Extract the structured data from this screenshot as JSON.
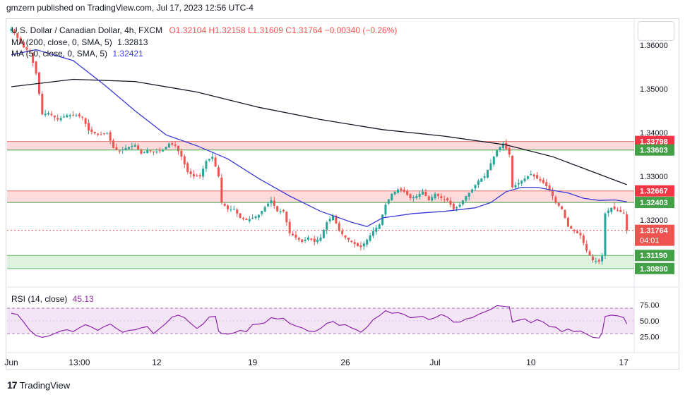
{
  "header": {
    "published": "gmzern published on TradingView.com, Jul 17, 2023 12:56 UTC-4"
  },
  "legend": {
    "symbol": "U.S. Dollar / Canadian Dollar, 4h, FXCM",
    "ohlc": "O1.32104  H1.32158  L1.31609  C1.31764  −0.00340 (−0.26%)",
    "ma200_label": "MA (200, close, 0, SMA, 5)",
    "ma200_value": "1.32813",
    "ma50_label": "MA (50, close, 0, SMA, 5)",
    "ma50_value": "1.32421",
    "rsi_label": "RSI (14, close)",
    "rsi_value": "45.13"
  },
  "footer": {
    "brand": "TradingView",
    "logo": "17"
  },
  "chart_data": {
    "type": "candlestick",
    "timeframe": "4h",
    "ylim": [
      1.305,
      1.366
    ],
    "y_ticks": [
      "1.36000",
      "1.35000",
      "1.34000",
      "1.33000",
      "1.32000"
    ],
    "x_ticks": [
      "Jun",
      "13:00",
      "12",
      "19",
      "26",
      "Jul",
      "10",
      "17"
    ],
    "zones": [
      {
        "top": 1.33798,
        "bottom": 1.33603,
        "kind": "resistance",
        "top_label": "1.33798",
        "bottom_label": "1.33603"
      },
      {
        "top": 1.32667,
        "bottom": 1.32403,
        "kind": "resistance",
        "top_label": "1.32667",
        "bottom_label": "1.32403"
      },
      {
        "top": 1.3119,
        "bottom": 1.3089,
        "kind": "support",
        "top_label": "1.31190",
        "bottom_label": "1.30890"
      }
    ],
    "last_price": {
      "value": 1.31764,
      "label": "1.31764",
      "countdown": "04:01"
    },
    "close_path": [
      [
        0,
        1.3638
      ],
      [
        4,
        1.3595
      ],
      [
        6,
        1.3585
      ],
      [
        8,
        1.3535
      ],
      [
        10,
        1.3442
      ],
      [
        12,
        1.3445
      ],
      [
        15,
        1.343
      ],
      [
        18,
        1.344
      ],
      [
        21,
        1.344
      ],
      [
        23,
        1.3435
      ],
      [
        25,
        1.3405
      ],
      [
        28,
        1.3395
      ],
      [
        31,
        1.3398
      ],
      [
        33,
        1.3365
      ],
      [
        35,
        1.3358
      ],
      [
        37,
        1.3365
      ],
      [
        40,
        1.3372
      ],
      [
        42,
        1.3352
      ],
      [
        44,
        1.336
      ],
      [
        46,
        1.3355
      ],
      [
        49,
        1.336
      ],
      [
        51,
        1.3375
      ],
      [
        53,
        1.337
      ],
      [
        55,
        1.3345
      ],
      [
        57,
        1.331
      ],
      [
        59,
        1.33
      ],
      [
        61,
        1.33
      ],
      [
        63,
        1.3335
      ],
      [
        65,
        1.3345
      ],
      [
        67,
        1.33
      ],
      [
        68,
        1.324
      ],
      [
        70,
        1.3225
      ],
      [
        72,
        1.3225
      ],
      [
        74,
        1.3205
      ],
      [
        76,
        1.32
      ],
      [
        78,
        1.3205
      ],
      [
        80,
        1.3212
      ],
      [
        82,
        1.323
      ],
      [
        84,
        1.3245
      ],
      [
        86,
        1.322
      ],
      [
        88,
        1.322
      ],
      [
        90,
        1.317
      ],
      [
        92,
        1.316
      ],
      [
        94,
        1.315
      ],
      [
        96,
        1.316
      ],
      [
        98,
        1.315
      ],
      [
        100,
        1.316
      ],
      [
        102,
        1.3195
      ],
      [
        104,
        1.321
      ],
      [
        106,
        1.3175
      ],
      [
        108,
        1.316
      ],
      [
        110,
        1.315
      ],
      [
        112,
        1.314
      ],
      [
        113,
        1.3138
      ],
      [
        115,
        1.3155
      ],
      [
        117,
        1.3175
      ],
      [
        119,
        1.319
      ],
      [
        121,
        1.3235
      ],
      [
        123,
        1.326
      ],
      [
        125,
        1.327
      ],
      [
        127,
        1.3265
      ],
      [
        129,
        1.325
      ],
      [
        131,
        1.3255
      ],
      [
        133,
        1.3265
      ],
      [
        135,
        1.3245
      ],
      [
        137,
        1.326
      ],
      [
        139,
        1.325
      ],
      [
        141,
        1.3245
      ],
      [
        143,
        1.3225
      ],
      [
        145,
        1.3235
      ],
      [
        147,
        1.3255
      ],
      [
        149,
        1.327
      ],
      [
        151,
        1.329
      ],
      [
        153,
        1.33
      ],
      [
        155,
        1.333
      ],
      [
        157,
        1.336
      ],
      [
        159,
        1.3375
      ],
      [
        161,
        1.335
      ],
      [
        162,
        1.3275
      ],
      [
        164,
        1.3285
      ],
      [
        166,
        1.3295
      ],
      [
        168,
        1.3305
      ],
      [
        170,
        1.3295
      ],
      [
        172,
        1.3285
      ],
      [
        174,
        1.327
      ],
      [
        176,
        1.324
      ],
      [
        178,
        1.3225
      ],
      [
        180,
        1.3185
      ],
      [
        182,
        1.3175
      ],
      [
        184,
        1.3165
      ],
      [
        186,
        1.313
      ],
      [
        188,
        1.3108
      ],
      [
        190,
        1.3105
      ],
      [
        191,
        1.3118
      ],
      [
        192,
        1.3215
      ],
      [
        194,
        1.3228
      ],
      [
        196,
        1.3222
      ],
      [
        198,
        1.3215
      ],
      [
        199,
        1.3176
      ]
    ],
    "ma200_path": [
      [
        0,
        1.3505
      ],
      [
        20,
        1.3522
      ],
      [
        40,
        1.3517
      ],
      [
        60,
        1.3493
      ],
      [
        80,
        1.3458
      ],
      [
        100,
        1.343
      ],
      [
        120,
        1.3407
      ],
      [
        140,
        1.3392
      ],
      [
        160,
        1.3372
      ],
      [
        175,
        1.3345
      ],
      [
        190,
        1.3305
      ],
      [
        199,
        1.3281
      ]
    ],
    "ma50_path": [
      [
        0,
        1.3578
      ],
      [
        8,
        1.359
      ],
      [
        20,
        1.3565
      ],
      [
        30,
        1.351
      ],
      [
        40,
        1.345
      ],
      [
        50,
        1.3395
      ],
      [
        60,
        1.337
      ],
      [
        70,
        1.334
      ],
      [
        80,
        1.3295
      ],
      [
        90,
        1.3255
      ],
      [
        100,
        1.322
      ],
      [
        110,
        1.3195
      ],
      [
        115,
        1.3185
      ],
      [
        120,
        1.3205
      ],
      [
        130,
        1.3215
      ],
      [
        140,
        1.322
      ],
      [
        150,
        1.3228
      ],
      [
        155,
        1.324
      ],
      [
        160,
        1.3265
      ],
      [
        165,
        1.3275
      ],
      [
        170,
        1.3275
      ],
      [
        175,
        1.3268
      ],
      [
        180,
        1.3262
      ],
      [
        185,
        1.325
      ],
      [
        190,
        1.3245
      ],
      [
        195,
        1.3246
      ],
      [
        199,
        1.3242
      ]
    ],
    "rsi": {
      "ylim": [
        0,
        100
      ],
      "ticks": [
        "75.00",
        "50.00",
        "25.00"
      ],
      "upper": 70,
      "lower": 30,
      "path": [
        [
          0,
          62
        ],
        [
          2,
          60
        ],
        [
          4,
          48
        ],
        [
          6,
          35
        ],
        [
          8,
          27
        ],
        [
          10,
          24
        ],
        [
          12,
          26
        ],
        [
          14,
          30
        ],
        [
          16,
          34
        ],
        [
          18,
          36
        ],
        [
          20,
          33
        ],
        [
          22,
          39
        ],
        [
          24,
          44
        ],
        [
          26,
          40
        ],
        [
          28,
          35
        ],
        [
          30,
          41
        ],
        [
          32,
          45
        ],
        [
          34,
          38
        ],
        [
          36,
          32
        ],
        [
          38,
          35
        ],
        [
          40,
          36
        ],
        [
          42,
          39
        ],
        [
          44,
          41
        ],
        [
          46,
          30
        ],
        [
          48,
          38
        ],
        [
          50,
          46
        ],
        [
          52,
          56
        ],
        [
          54,
          59
        ],
        [
          56,
          55
        ],
        [
          58,
          46
        ],
        [
          60,
          38
        ],
        [
          62,
          45
        ],
        [
          64,
          56
        ],
        [
          66,
          57
        ],
        [
          67,
          34
        ],
        [
          68,
          30
        ],
        [
          70,
          29
        ],
        [
          72,
          31
        ],
        [
          74,
          35
        ],
        [
          76,
          33
        ],
        [
          78,
          44
        ],
        [
          80,
          45
        ],
        [
          82,
          47
        ],
        [
          84,
          55
        ],
        [
          86,
          53
        ],
        [
          88,
          54
        ],
        [
          90,
          46
        ],
        [
          92,
          42
        ],
        [
          94,
          39
        ],
        [
          96,
          34
        ],
        [
          98,
          33
        ],
        [
          100,
          38
        ],
        [
          102,
          46
        ],
        [
          104,
          49
        ],
        [
          106,
          43
        ],
        [
          108,
          44
        ],
        [
          110,
          39
        ],
        [
          112,
          35
        ],
        [
          113,
          32
        ],
        [
          115,
          40
        ],
        [
          117,
          52
        ],
        [
          119,
          58
        ],
        [
          121,
          66
        ],
        [
          123,
          62
        ],
        [
          125,
          63
        ],
        [
          127,
          60
        ],
        [
          129,
          55
        ],
        [
          131,
          56
        ],
        [
          133,
          57
        ],
        [
          135,
          52
        ],
        [
          137,
          55
        ],
        [
          139,
          60
        ],
        [
          141,
          56
        ],
        [
          143,
          48
        ],
        [
          145,
          48
        ],
        [
          147,
          53
        ],
        [
          149,
          55
        ],
        [
          151,
          60
        ],
        [
          153,
          64
        ],
        [
          155,
          68
        ],
        [
          157,
          74
        ],
        [
          159,
          73
        ],
        [
          161,
          72
        ],
        [
          162,
          48
        ],
        [
          164,
          51
        ],
        [
          166,
          53
        ],
        [
          168,
          47
        ],
        [
          170,
          52
        ],
        [
          172,
          48
        ],
        [
          174,
          41
        ],
        [
          176,
          40
        ],
        [
          178,
          33
        ],
        [
          180,
          37
        ],
        [
          182,
          33
        ],
        [
          184,
          34
        ],
        [
          186,
          29
        ],
        [
          188,
          24
        ],
        [
          190,
          23
        ],
        [
          191,
          31
        ],
        [
          192,
          57
        ],
        [
          194,
          59
        ],
        [
          196,
          58
        ],
        [
          198,
          55
        ],
        [
          199,
          45
        ]
      ]
    }
  }
}
